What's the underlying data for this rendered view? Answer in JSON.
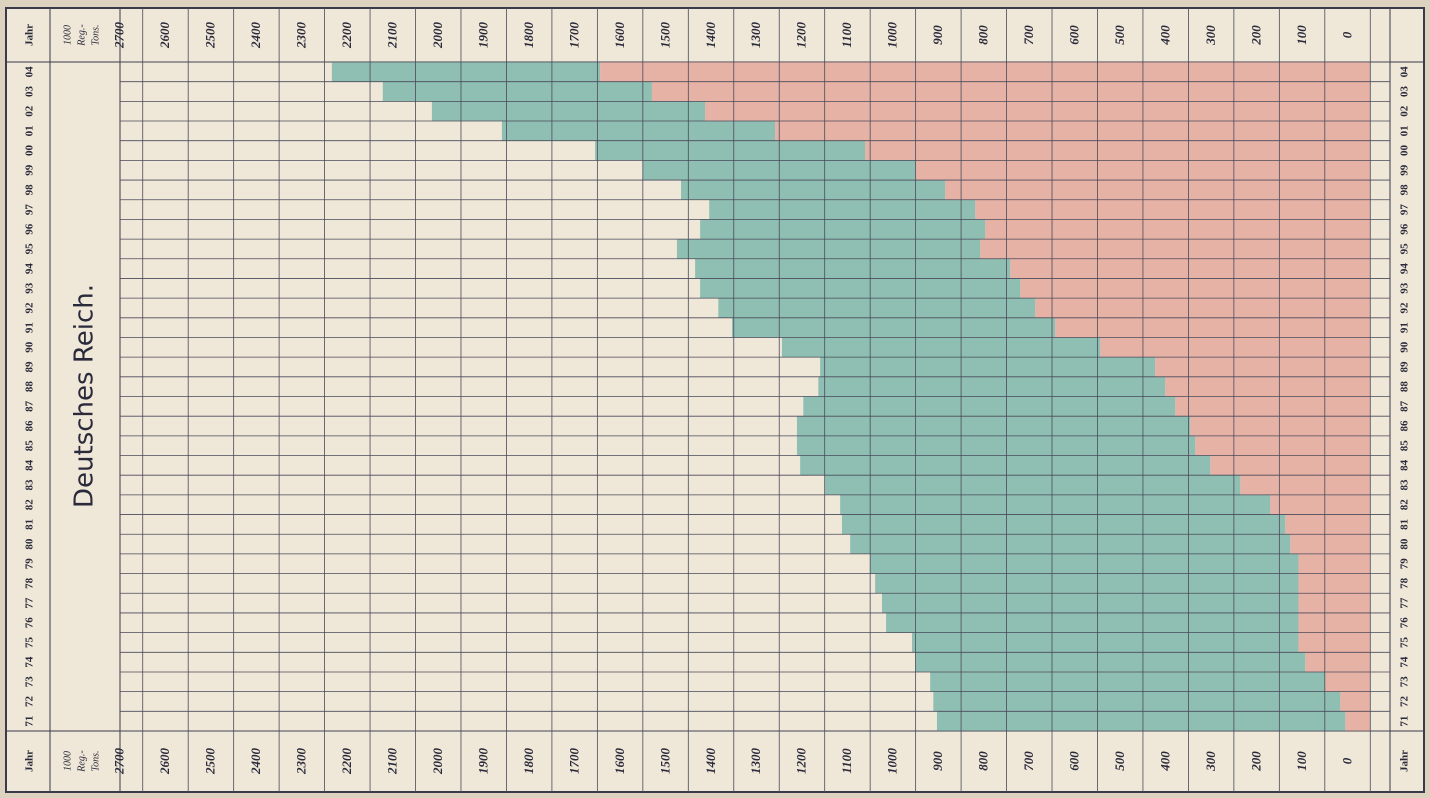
{
  "chart_data": {
    "type": "stacked-bar-horizontal",
    "title": "Deutsches Reich.",
    "year_label": "Jahr",
    "unit_label": [
      "1000",
      "Reg.-",
      "Tons."
    ],
    "categories": [
      "71",
      "72",
      "73",
      "74",
      "75",
      "76",
      "77",
      "78",
      "79",
      "80",
      "81",
      "82",
      "83",
      "84",
      "85",
      "86",
      "87",
      "88",
      "89",
      "90",
      "91",
      "92",
      "93",
      "94",
      "95",
      "96",
      "97",
      "98",
      "99",
      "00",
      "01",
      "02",
      "03",
      "04"
    ],
    "series": [
      {
        "color": "#e6b2a6",
        "values": [
          55,
          66,
          99,
          143,
          158,
          158,
          158,
          158,
          158,
          176,
          187,
          220,
          286,
          352,
          385,
          396,
          429,
          451,
          473,
          594,
          693,
          737,
          770,
          792,
          858,
          847,
          869,
          935,
          1001,
          1111,
          1309,
          1463,
          1580,
          1694
        ]
      },
      {
        "color": "#8fbfb2",
        "values": [
          898,
          895,
          869,
          858,
          850,
          907,
          916,
          931,
          942,
          968,
          975,
          946,
          913,
          902,
          876,
          865,
          818,
          763,
          737,
          700,
          711,
          697,
          704,
          693,
          667,
          627,
          585,
          581,
          599,
          594,
          601,
          601,
          592,
          590
        ]
      }
    ],
    "xlim": [
      -50,
      2750
    ],
    "xticks": [
      0,
      100,
      200,
      300,
      400,
      500,
      600,
      700,
      800,
      900,
      1000,
      1100,
      1200,
      1300,
      1400,
      1500,
      1600,
      1700,
      1800,
      1900,
      2000,
      2100,
      2200,
      2300,
      2400,
      2500,
      2600,
      2700
    ],
    "grid": true
  }
}
